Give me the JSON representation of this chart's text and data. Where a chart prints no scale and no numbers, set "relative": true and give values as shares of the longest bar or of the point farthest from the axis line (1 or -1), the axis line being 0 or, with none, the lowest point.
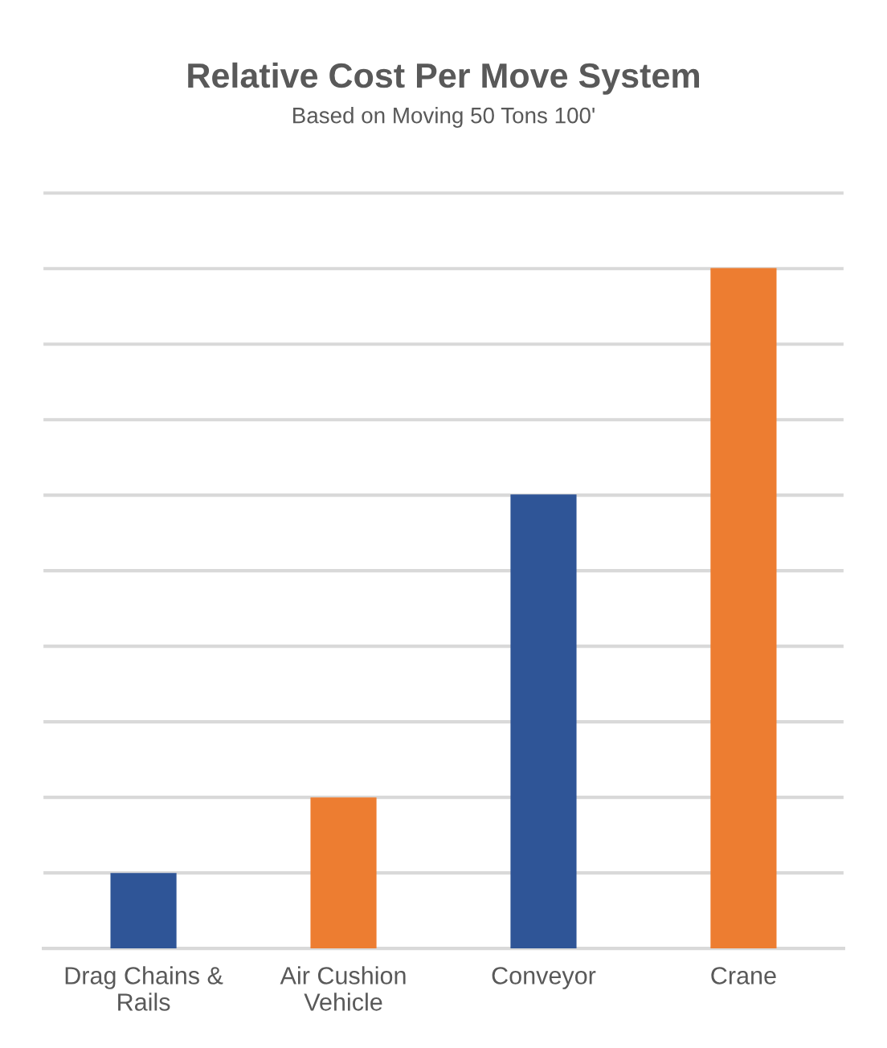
{
  "chart_data": {
    "type": "bar",
    "title": "Relative Cost Per Move System",
    "subtitle": "Based on Moving 50 Tons 100'",
    "categories": [
      "Drag Chains &\nRails",
      "Air Cushion\nVehicle",
      "Conveyor",
      "Crane"
    ],
    "values": [
      0.111,
      0.222,
      0.667,
      1
    ],
    "colors": [
      "#2f5597",
      "#ed7d31",
      "#2f5597",
      "#ed7d31"
    ],
    "relative": true,
    "grid": "y"
  }
}
